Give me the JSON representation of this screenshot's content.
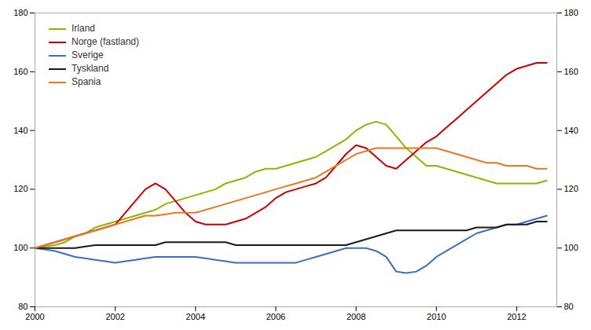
{
  "chart_data": {
    "type": "line",
    "x": [
      2000,
      2000.25,
      2000.5,
      2000.75,
      2001,
      2001.25,
      2001.5,
      2001.75,
      2002,
      2002.25,
      2002.5,
      2002.75,
      2003,
      2003.25,
      2003.5,
      2003.75,
      2004,
      2004.25,
      2004.5,
      2004.75,
      2005,
      2005.25,
      2005.5,
      2005.75,
      2006,
      2006.25,
      2006.5,
      2006.75,
      2007,
      2007.25,
      2007.5,
      2007.75,
      2008,
      2008.25,
      2008.5,
      2008.75,
      2009,
      2009.25,
      2009.5,
      2009.75,
      2010,
      2010.25,
      2010.5,
      2010.75,
      2011,
      2011.25,
      2011.5,
      2011.75,
      2012,
      2012.25,
      2012.5,
      2012.75
    ],
    "series": [
      {
        "name": "Irland",
        "color": "#8db600",
        "values": [
          100,
          100.5,
          101,
          102,
          104,
          105,
          107,
          108,
          109,
          110,
          111,
          112,
          113,
          115,
          116,
          117,
          118,
          119,
          120,
          122,
          123,
          124,
          126,
          127,
          127,
          128,
          129,
          130,
          131,
          133,
          135,
          137,
          140,
          142,
          143,
          142,
          138,
          134,
          131,
          128,
          128,
          127,
          126,
          125,
          124,
          123,
          122,
          122,
          122,
          122,
          122,
          123
        ]
      },
      {
        "name": "Norge (fastland)",
        "color": "#cc0000",
        "values": [
          100,
          101,
          102,
          103,
          104,
          105,
          106,
          107,
          108,
          112,
          116,
          120,
          122,
          120,
          116,
          112,
          109,
          108,
          108,
          108,
          109,
          110,
          112,
          114,
          117,
          119,
          120,
          121,
          122,
          124,
          128,
          132,
          135,
          134,
          131,
          128,
          127,
          130,
          133,
          136,
          138,
          141,
          144,
          147,
          150,
          153,
          156,
          159,
          161,
          162,
          163,
          163
        ]
      },
      {
        "name": "Sverige",
        "color": "#3b6fba",
        "values": [
          100,
          99.5,
          99,
          98,
          97,
          96.5,
          96,
          95.5,
          95,
          95.5,
          96,
          96.5,
          97,
          97,
          97,
          97,
          97,
          96.5,
          96,
          95.5,
          95,
          95,
          95,
          95,
          95,
          95,
          95,
          96,
          97,
          98,
          99,
          100,
          100,
          100,
          99,
          97,
          92,
          91.5,
          92,
          94,
          97,
          99,
          101,
          103,
          105,
          106,
          107,
          108,
          108,
          109,
          110,
          111
        ]
      },
      {
        "name": "Tyskland",
        "color": "#1a1a1a",
        "values": [
          100,
          100,
          100,
          100,
          100,
          100.5,
          101,
          101,
          101,
          101,
          101,
          101,
          101,
          102,
          102,
          102,
          102,
          102,
          102,
          102,
          101,
          101,
          101,
          101,
          101,
          101,
          101,
          101,
          101,
          101,
          101,
          101,
          102,
          103,
          104,
          105,
          106,
          106,
          106,
          106,
          106,
          106,
          106,
          106,
          107,
          107,
          107,
          108,
          108,
          108,
          109,
          109
        ]
      },
      {
        "name": "Spania",
        "color": "#e87722",
        "values": [
          100,
          101,
          102,
          103,
          104,
          105,
          106,
          107,
          108,
          109,
          110,
          111,
          111,
          111.5,
          112,
          112,
          112,
          113,
          114,
          115,
          116,
          117,
          118,
          119,
          120,
          121,
          122,
          123,
          124,
          126,
          128,
          130,
          132,
          133,
          134,
          134,
          134,
          134,
          134,
          134,
          134,
          133,
          132,
          131,
          130,
          129,
          129,
          128,
          128,
          128,
          127,
          127
        ]
      }
    ],
    "xlim": [
      2000,
      2013
    ],
    "xticks": [
      2000,
      2002,
      2004,
      2006,
      2008,
      2010,
      2012
    ],
    "ylim": [
      80,
      180
    ],
    "yticks": [
      80,
      100,
      120,
      140,
      160,
      180
    ],
    "y2lim": [
      80,
      180
    ],
    "y2ticks": [
      80,
      100,
      120,
      140,
      160,
      180
    ],
    "grid": false,
    "legend": "upper left"
  }
}
